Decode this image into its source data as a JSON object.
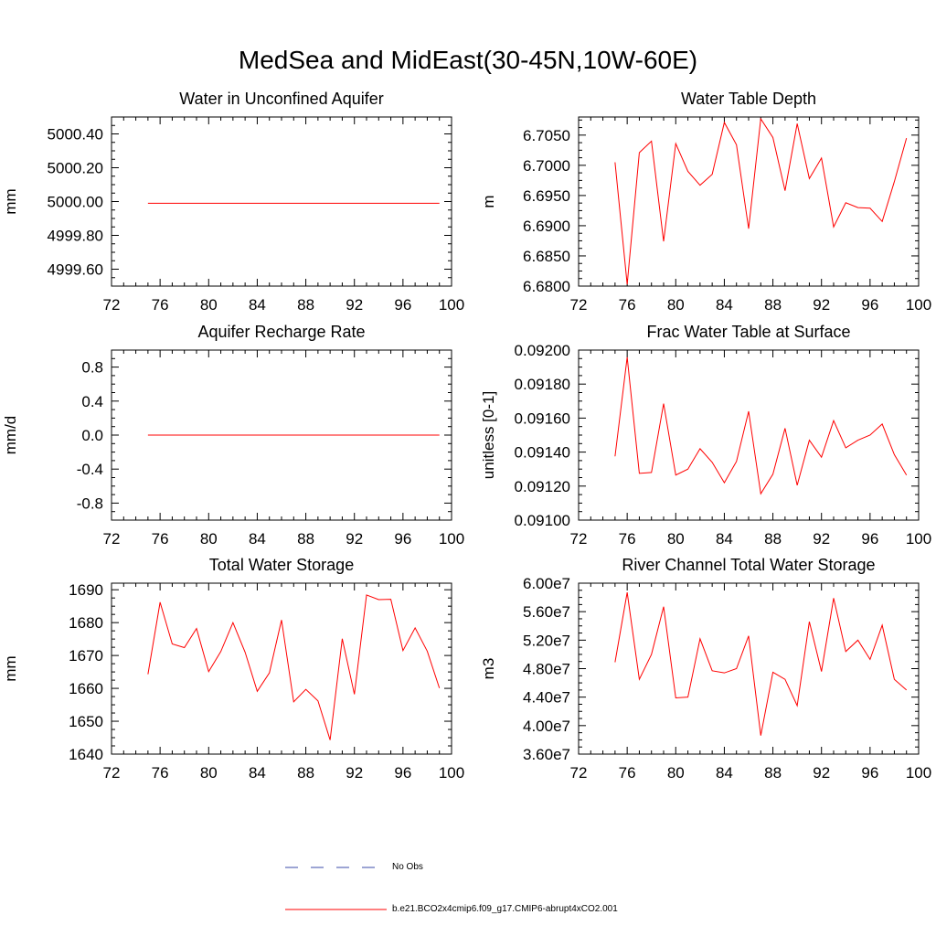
{
  "figure_title": "MedSea and MidEast(30-45N,10W-60E)",
  "legend": [
    {
      "label": "No Obs",
      "color": "#3b4ba8",
      "style": "dashed"
    },
    {
      "label": "b.e21.BCO2x4cmip6.f09_g17.CMIP6-abrupt4xCO2.001",
      "color": "#ff0000",
      "style": "solid"
    }
  ],
  "chart_data": [
    {
      "type": "line",
      "title": "Water in Unconfined Aquifer",
      "xlabel": "",
      "ylabel": "mm",
      "xlim": [
        72,
        100
      ],
      "ylim": [
        4999.5,
        5000.5
      ],
      "xticks": [
        72,
        76,
        80,
        84,
        88,
        92,
        96,
        100
      ],
      "yticks": [
        4999.6,
        5000.0,
        5000.4
      ],
      "ytick_labels": [
        "4999.60",
        "4999.80",
        "5000.00",
        "5000.20",
        "5000.40"
      ],
      "ytick_values": [
        4999.6,
        4999.8,
        5000.0,
        5000.2,
        5000.4
      ],
      "series": [
        {
          "name": "b.e21.BCO2x4cmip6.f09_g17.CMIP6-abrupt4xCO2.001",
          "x": [
            75,
            76,
            77,
            78,
            79,
            80,
            81,
            82,
            83,
            84,
            85,
            86,
            87,
            88,
            89,
            90,
            91,
            92,
            93,
            94,
            95,
            96,
            97,
            98,
            99
          ],
          "values": [
            4999.99,
            4999.99,
            4999.99,
            4999.99,
            4999.99,
            4999.99,
            4999.99,
            4999.99,
            4999.99,
            4999.99,
            4999.99,
            4999.99,
            4999.99,
            4999.99,
            4999.99,
            4999.99,
            4999.99,
            4999.99,
            4999.99,
            4999.99,
            4999.99,
            4999.99,
            4999.99,
            4999.99,
            4999.99
          ]
        }
      ]
    },
    {
      "type": "line",
      "title": "Water Table Depth",
      "xlabel": "",
      "ylabel": "m",
      "xlim": [
        72,
        100
      ],
      "ylim": [
        6.68,
        6.708
      ],
      "xticks": [
        72,
        76,
        80,
        84,
        88,
        92,
        96,
        100
      ],
      "ytick_labels": [
        "6.6800",
        "6.6850",
        "6.6900",
        "6.6950",
        "6.7000",
        "6.7050"
      ],
      "ytick_values": [
        6.68,
        6.685,
        6.69,
        6.695,
        6.7,
        6.705
      ],
      "series": [
        {
          "name": "b.e21.BCO2x4cmip6.f09_g17.CMIP6-abrupt4xCO2.001",
          "x": [
            75,
            76,
            77,
            78,
            79,
            80,
            81,
            82,
            83,
            84,
            85,
            86,
            87,
            88,
            89,
            90,
            91,
            92,
            93,
            94,
            95,
            96,
            97,
            98,
            99
          ],
          "values": [
            6.7005,
            6.6803,
            6.7021,
            6.704,
            6.6874,
            6.7036,
            6.699,
            6.6967,
            6.6985,
            6.7071,
            6.7034,
            6.6895,
            6.7077,
            6.7046,
            6.6958,
            6.7069,
            6.6978,
            6.7012,
            6.6898,
            6.6938,
            6.693,
            6.6929,
            6.6907,
            6.6973,
            6.7045
          ]
        }
      ]
    },
    {
      "type": "line",
      "title": "Aquifer Recharge Rate",
      "xlabel": "",
      "ylabel": "mm/d",
      "xlim": [
        72,
        100
      ],
      "ylim": [
        -1.0,
        1.0
      ],
      "xticks": [
        72,
        76,
        80,
        84,
        88,
        92,
        96,
        100
      ],
      "ytick_labels": [
        "-0.8",
        "-0.4",
        "0.0",
        "0.4",
        "0.8"
      ],
      "ytick_values": [
        -0.8,
        -0.4,
        0.0,
        0.4,
        0.8
      ],
      "series": [
        {
          "name": "b.e21.BCO2x4cmip6.f09_g17.CMIP6-abrupt4xCO2.001",
          "x": [
            75,
            76,
            77,
            78,
            79,
            80,
            81,
            82,
            83,
            84,
            85,
            86,
            87,
            88,
            89,
            90,
            91,
            92,
            93,
            94,
            95,
            96,
            97,
            98,
            99
          ],
          "values": [
            0,
            0,
            0,
            0,
            0,
            0,
            0,
            0,
            0,
            0,
            0,
            0,
            0,
            0,
            0,
            0,
            0,
            0,
            0,
            0,
            0,
            0,
            0,
            0,
            0
          ]
        }
      ]
    },
    {
      "type": "line",
      "title": "Frac Water Table at Surface",
      "xlabel": "",
      "ylabel": "unitless [0-1]",
      "xlim": [
        72,
        100
      ],
      "ylim": [
        0.091,
        0.092
      ],
      "xticks": [
        72,
        76,
        80,
        84,
        88,
        92,
        96,
        100
      ],
      "ytick_labels": [
        "0.09100",
        "0.09120",
        "0.09140",
        "0.09160",
        "0.09180",
        "0.09200"
      ],
      "ytick_values": [
        0.091,
        0.0912,
        0.0914,
        0.0916,
        0.0918,
        0.092
      ],
      "series": [
        {
          "name": "b.e21.BCO2x4cmip6.f09_g17.CMIP6-abrupt4xCO2.001",
          "x": [
            75,
            76,
            77,
            78,
            79,
            80,
            81,
            82,
            83,
            84,
            85,
            86,
            87,
            88,
            89,
            90,
            91,
            92,
            93,
            94,
            95,
            96,
            97,
            98,
            99
          ],
          "values": [
            0.091375,
            0.091958,
            0.091275,
            0.09128,
            0.091685,
            0.091265,
            0.0913,
            0.09142,
            0.09134,
            0.09122,
            0.091345,
            0.09164,
            0.091155,
            0.09127,
            0.09154,
            0.091205,
            0.09147,
            0.09137,
            0.091585,
            0.091425,
            0.09147,
            0.0915,
            0.091565,
            0.091385,
            0.091265
          ]
        }
      ]
    },
    {
      "type": "line",
      "title": "Total Water Storage",
      "xlabel": "",
      "ylabel": "mm",
      "xlim": [
        72,
        100
      ],
      "ylim": [
        1640,
        1692
      ],
      "xticks": [
        72,
        76,
        80,
        84,
        88,
        92,
        96,
        100
      ],
      "ytick_labels": [
        "1640",
        "1650",
        "1660",
        "1670",
        "1680",
        "1690"
      ],
      "ytick_values": [
        1640,
        1650,
        1660,
        1670,
        1680,
        1690
      ],
      "series": [
        {
          "name": "b.e21.BCO2x4cmip6.f09_g17.CMIP6-abrupt4xCO2.001",
          "x": [
            75,
            76,
            77,
            78,
            79,
            80,
            81,
            82,
            83,
            84,
            85,
            86,
            87,
            88,
            89,
            90,
            91,
            92,
            93,
            94,
            95,
            96,
            97,
            98,
            99
          ],
          "values": [
            1664.3,
            1686.2,
            1673.5,
            1672.4,
            1678.2,
            1665.1,
            1671.2,
            1680.0,
            1671.0,
            1659.1,
            1664.7,
            1680.8,
            1655.9,
            1659.7,
            1656.2,
            1644.3,
            1675.1,
            1658.2,
            1688.4,
            1687.0,
            1687.1,
            1671.5,
            1678.4,
            1671.3,
            1660.1
          ]
        }
      ]
    },
    {
      "type": "line",
      "title": "River Channel Total Water Storage",
      "xlabel": "",
      "ylabel": "m3",
      "xlim": [
        72,
        100
      ],
      "ylim": [
        36000000,
        60000000
      ],
      "xticks": [
        72,
        76,
        80,
        84,
        88,
        92,
        96,
        100
      ],
      "ytick_labels": [
        "3.60e7",
        "4.00e7",
        "4.40e7",
        "4.80e7",
        "5.20e7",
        "5.60e7",
        "6.00e7"
      ],
      "ytick_values": [
        36000000,
        40000000,
        44000000,
        48000000,
        52000000,
        56000000,
        60000000
      ],
      "series": [
        {
          "name": "b.e21.BCO2x4cmip6.f09_g17.CMIP6-abrupt4xCO2.001",
          "x": [
            75,
            76,
            77,
            78,
            79,
            80,
            81,
            82,
            83,
            84,
            85,
            86,
            87,
            88,
            89,
            90,
            91,
            92,
            93,
            94,
            95,
            96,
            97,
            98,
            99
          ],
          "values": [
            48900000,
            58700000,
            46500000,
            50000000,
            56700000,
            43900000,
            44000000,
            52200000,
            47700000,
            47400000,
            48000000,
            52600000,
            38600000,
            47500000,
            46500000,
            42800000,
            54600000,
            47600000,
            57900000,
            50400000,
            52000000,
            49300000,
            54100000,
            46500000,
            45000000
          ]
        }
      ]
    }
  ]
}
